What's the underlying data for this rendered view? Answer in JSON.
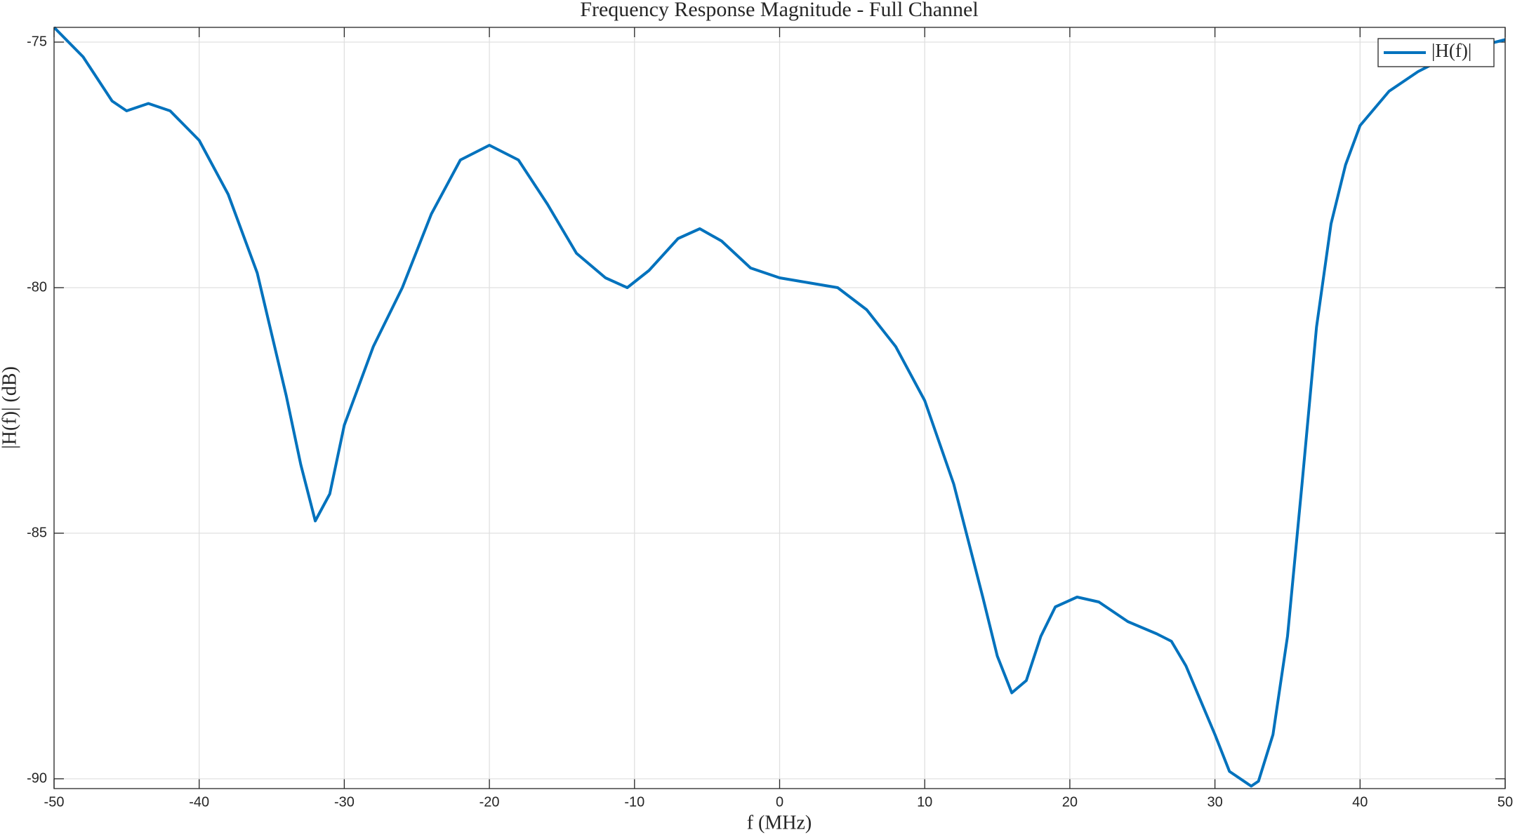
{
  "chart_data": {
    "type": "line",
    "title": "Frequency Response Magnitude - Full Channel",
    "x_label": "f (MHz)",
    "y_label": "|H(f)| (dB)",
    "x": [
      -50,
      -48,
      -46,
      -45,
      -43.5,
      -42,
      -40,
      -38,
      -36,
      -34,
      -33,
      -32,
      -31,
      -30,
      -28,
      -26,
      -24,
      -22,
      -20,
      -18,
      -16,
      -14,
      -12,
      -10.5,
      -9,
      -7,
      -5.5,
      -4,
      -2,
      0,
      2,
      4,
      6,
      8,
      10,
      12,
      14,
      15,
      16,
      17,
      18,
      19,
      20.5,
      22,
      24,
      26,
      27,
      28,
      30,
      31,
      32.5,
      33,
      34,
      35,
      36,
      37,
      38,
      39,
      40,
      42,
      44,
      46,
      48,
      50
    ],
    "series": [
      {
        "name": "|H(f)|",
        "color": "#0072bd",
        "values": [
          -74.7,
          -75.3,
          -76.2,
          -76.4,
          -76.25,
          -76.4,
          -77.0,
          -78.1,
          -79.7,
          -82.2,
          -83.6,
          -84.75,
          -84.2,
          -82.8,
          -81.2,
          -80.0,
          -78.5,
          -77.4,
          -77.1,
          -77.4,
          -78.3,
          -79.3,
          -79.8,
          -80.0,
          -79.65,
          -79.0,
          -78.8,
          -79.05,
          -79.6,
          -79.8,
          -79.9,
          -80.0,
          -80.45,
          -81.2,
          -82.3,
          -84.0,
          -86.3,
          -87.5,
          -88.25,
          -88.0,
          -87.1,
          -86.5,
          -86.3,
          -86.4,
          -86.8,
          -87.05,
          -87.2,
          -87.7,
          -89.1,
          -89.85,
          -90.15,
          -90.05,
          -89.1,
          -87.1,
          -84.0,
          -80.8,
          -78.7,
          -77.5,
          -76.7,
          -76.0,
          -75.6,
          -75.3,
          -75.1,
          -74.95
        ]
      }
    ],
    "xlim": [
      -50,
      50
    ],
    "ylim": [
      -90.2,
      -74.7
    ],
    "xticks": [
      -50,
      -40,
      -30,
      -20,
      -10,
      0,
      10,
      20,
      30,
      40,
      50
    ],
    "yticks": [
      -90,
      -85,
      -80,
      -75
    ],
    "grid": true,
    "legend": "upper right"
  }
}
